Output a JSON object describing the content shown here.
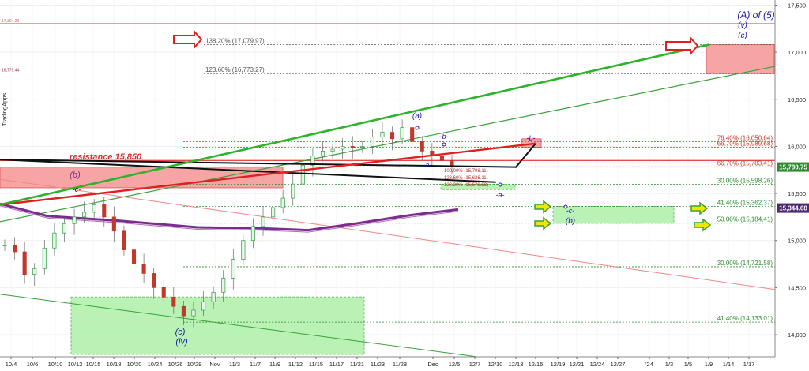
{
  "chart_data": {
    "type": "candlestick",
    "ylim": [
      13800,
      17600
    ],
    "y_ticks": [
      "14,000",
      "14,500",
      "15,000",
      "15,500",
      "16,000",
      "16,500",
      "17,000",
      "17,500"
    ],
    "x_ticks": [
      "10/4",
      "10/6",
      "10/10",
      "10/12",
      "10/15",
      "10/18",
      "10/20",
      "10/24",
      "10/26",
      "10/29",
      "Nov",
      "11/3",
      "11/7",
      "11/9",
      "11/12",
      "11/15",
      "11/17",
      "11/21",
      "11/23",
      "11/28",
      "Dec",
      "12/5",
      "12/7",
      "12/10",
      "12/13",
      "12/15",
      "12/19",
      "12/21",
      "12/24",
      "12/27",
      "'24",
      "1/3",
      "1/5",
      "1/9",
      "1/14",
      "1/17"
    ],
    "watermark": "TradingApps",
    "horizontal_lines": [
      {
        "label": "17,304.29",
        "value": 17304.29,
        "color": "#e06060"
      },
      {
        "label": "16,779.44",
        "value": 16779.44,
        "color": "#9b2a5a"
      }
    ],
    "fib_levels": [
      {
        "label": "138.20% (17,079.97)",
        "value": 17079.97,
        "color": "#555555"
      },
      {
        "label": "123.60% (16,773.27)",
        "value": 16773.27,
        "color": "#555555"
      },
      {
        "label": "76.40% (16,050.64)",
        "value": 16050.64,
        "color": "#c0392b"
      },
      {
        "label": "66.70% (15,989.68)",
        "value": 15989.68,
        "color": "#c0392b"
      },
      {
        "label": "66.70% (15,783.41)",
        "value": 15783.41,
        "color": "#c0392b"
      },
      {
        "label": "30.00% (15,598.26)",
        "value": 15598.26,
        "color": "#2e8b2e"
      },
      {
        "label": "41.40% (15,362.37)",
        "value": 15362.37,
        "color": "#2e8b2e"
      },
      {
        "label": "50.00% (15,184.41)",
        "value": 15184.41,
        "color": "#2e8b2e"
      },
      {
        "label": "30.00% (14,721.58)",
        "value": 14721.58,
        "color": "#2e8b2e"
      },
      {
        "label": "41.40% (14,133.01)",
        "value": 14133.01,
        "color": "#2e8b2e"
      }
    ],
    "small_fib_labels": [
      "100.00% (15,708.11)",
      "123.60% (15,626.11)",
      "138.20% (15,573.58)"
    ],
    "resistance": {
      "label": "resistance 15,850",
      "value": 15850
    },
    "price_tags": [
      {
        "label": "15,780.75",
        "value": 15780.75,
        "color": "#2e8b2e"
      },
      {
        "label": "15,344.68",
        "value": 15344.68,
        "color": "#4b2a6e"
      }
    ],
    "wave_labels": [
      "(A) of (5)",
      "(v)",
      "(c)",
      "(a)",
      "-b-",
      "-a-",
      "-b-",
      "-a-",
      "-c-",
      "(b)",
      "-c-",
      "(b)",
      "(c)",
      "(iv)"
    ],
    "series": [
      {
        "values": [
          14950,
          14880,
          14640,
          14700,
          14920,
          15080,
          15180,
          15250,
          15300,
          15380,
          15250,
          15100,
          14900,
          14750,
          14650,
          14500,
          14400,
          14300,
          14200,
          14260,
          14350,
          14450,
          14600,
          14800,
          15000,
          15150,
          15250,
          15350,
          15450,
          15600,
          15800,
          15900,
          15950,
          15970,
          16000,
          15990,
          16000,
          16100,
          16150,
          16080,
          16200,
          16050,
          15950,
          15900,
          15850,
          15780
        ]
      }
    ],
    "projection_points": [
      {
        "date": "12/10",
        "value": 15620
      },
      {
        "date": "12/12",
        "value": 15860
      },
      {
        "date": "12/13",
        "value": 15780
      },
      {
        "date": "12/15",
        "value": 16030
      },
      {
        "date": "12/20",
        "value": 15380
      },
      {
        "date": "1/9",
        "value": 17080
      }
    ]
  }
}
